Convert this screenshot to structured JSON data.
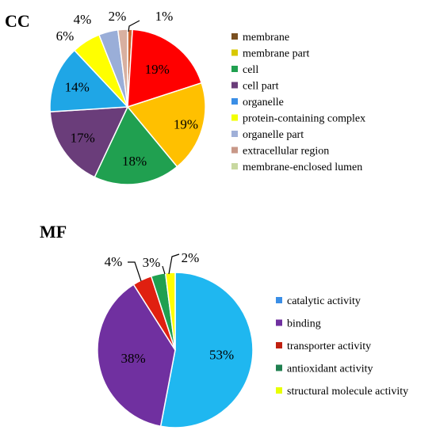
{
  "chart_data": [
    {
      "type": "pie",
      "title": "CC",
      "categories": [
        "membrane",
        "membrane part",
        "cell",
        "cell part",
        "organelle",
        "protein-containing complex",
        "organelle part",
        "extracellular region",
        "membrane-enclosed lumen"
      ],
      "values": [
        1,
        19,
        19,
        18,
        17,
        14,
        6,
        4,
        2
      ],
      "slices": [
        {
          "value": 1,
          "label": "1%",
          "color": "#cc6633"
        },
        {
          "value": 19,
          "label": "19%",
          "color": "#ff0000"
        },
        {
          "value": 19,
          "label": "19%",
          "color": "#ffc000"
        },
        {
          "value": 18,
          "label": "18%",
          "color": "#20a050"
        },
        {
          "value": 17,
          "label": "17%",
          "color": "#6a3d7a"
        },
        {
          "value": 14,
          "label": "14%",
          "color": "#1fa6e6"
        },
        {
          "value": 6,
          "label": "6%",
          "color": "#ffff00"
        },
        {
          "value": 4,
          "label": "4%",
          "color": "#9aaed8"
        },
        {
          "value": 2,
          "label": "2%",
          "color": "#d8b0a0"
        }
      ],
      "legend": [
        {
          "label": "membrane",
          "color": "#7a5020"
        },
        {
          "label": "membrane part",
          "color": "#d8c800"
        },
        {
          "label": "cell",
          "color": "#20a050"
        },
        {
          "label": "cell part",
          "color": "#6a3d7a"
        },
        {
          "label": "organelle",
          "color": "#3a8ee6"
        },
        {
          "label": "protein-containing complex",
          "color": "#f2ff00"
        },
        {
          "label": "organelle part",
          "color": "#a0b0d8"
        },
        {
          "label": "extracellular region",
          "color": "#c89888"
        },
        {
          "label": "membrane-enclosed lumen",
          "color": "#c8d8a0"
        }
      ],
      "legend_placement": "right"
    },
    {
      "type": "pie",
      "title": "MF",
      "categories": [
        "catalytic activity",
        "binding",
        "transporter activity",
        "antioxidant activity",
        "structural molecule activity"
      ],
      "values": [
        53,
        38,
        4,
        3,
        2
      ],
      "slices": [
        {
          "value": 53,
          "label": "53%",
          "color": "#1fb7f0"
        },
        {
          "value": 38,
          "label": "38%",
          "color": "#7030a0"
        },
        {
          "value": 4,
          "label": "4%",
          "color": "#e02010"
        },
        {
          "value": 3,
          "label": "3%",
          "color": "#20a050"
        },
        {
          "value": 2,
          "label": "2%",
          "color": "#ffff00"
        }
      ],
      "legend": [
        {
          "label": "catalytic activity",
          "color": "#3a8ee6"
        },
        {
          "label": "binding",
          "color": "#7030a0"
        },
        {
          "label": "transporter activity",
          "color": "#c02010"
        },
        {
          "label": "antioxidant activity",
          "color": "#208050"
        },
        {
          "label": "structural molecule activity",
          "color": "#e8ff00"
        }
      ],
      "legend_placement": "right"
    }
  ]
}
